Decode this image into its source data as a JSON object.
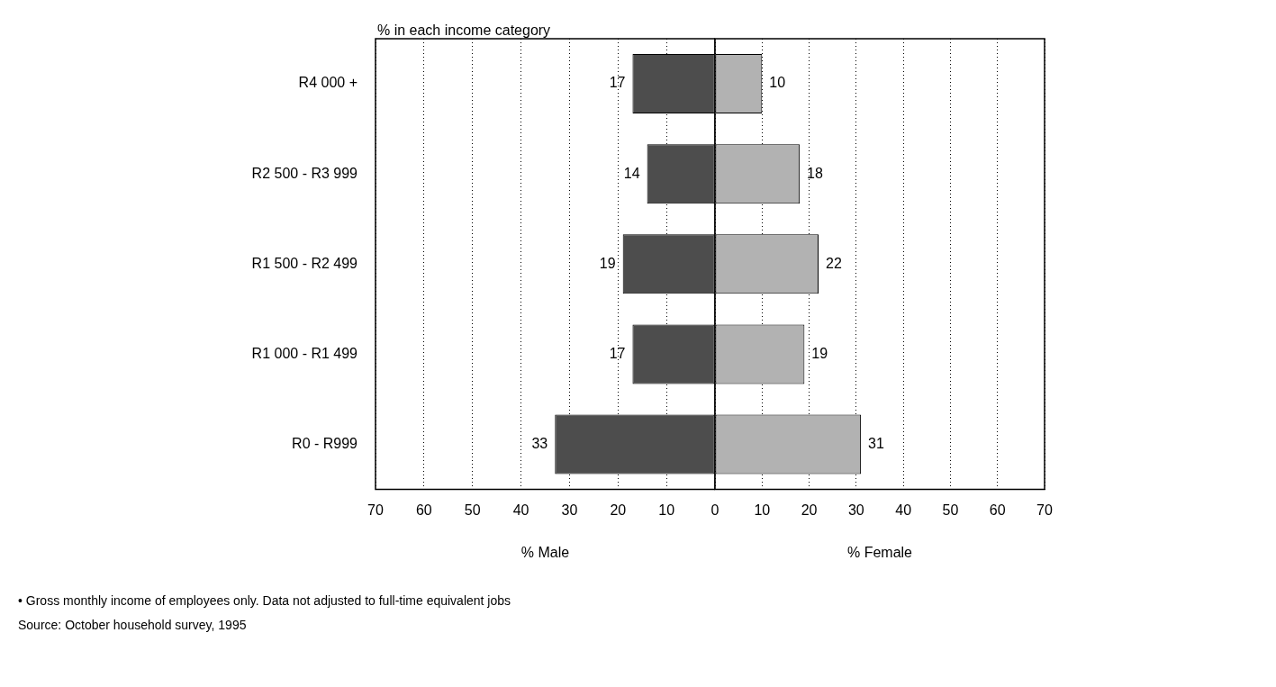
{
  "chart_data": [
    {
      "type": "bar",
      "orientation": "horizontal",
      "title": "% in each income category",
      "xlabel": "% Male",
      "categories": [
        "R4 000 +",
        "R2 500 - R3 999",
        "R1 500 - R2 499",
        "R1 000 - R1 499",
        "R0 - R999"
      ],
      "series": [
        {
          "color": "#4d4d4d",
          "values": [
            17,
            14,
            19,
            17,
            33
          ]
        }
      ],
      "xlim": [
        70,
        0
      ],
      "xticks": [
        70,
        60,
        50,
        40,
        30,
        20,
        10,
        {
          "value": 0,
          "label": null
        }
      ],
      "grid": "x",
      "data_labels": true
    },
    {
      "type": "bar",
      "orientation": "horizontal",
      "xlabel": "% Female",
      "categories": [
        null,
        null,
        null,
        null,
        null
      ],
      "series": [
        {
          "color": "#b2b2b2",
          "values": [
            10,
            18,
            22,
            19,
            31
          ]
        }
      ],
      "xlim": [
        0,
        70
      ],
      "xticks": [
        0,
        10,
        20,
        30,
        40,
        50,
        60,
        70
      ],
      "grid": "x",
      "data_labels": true,
      "annotations": [
        "• Gross monthly income of employees only. Data not adjusted to full-time equivalent jobs",
        "Source: October household survey, 1995"
      ]
    }
  ]
}
